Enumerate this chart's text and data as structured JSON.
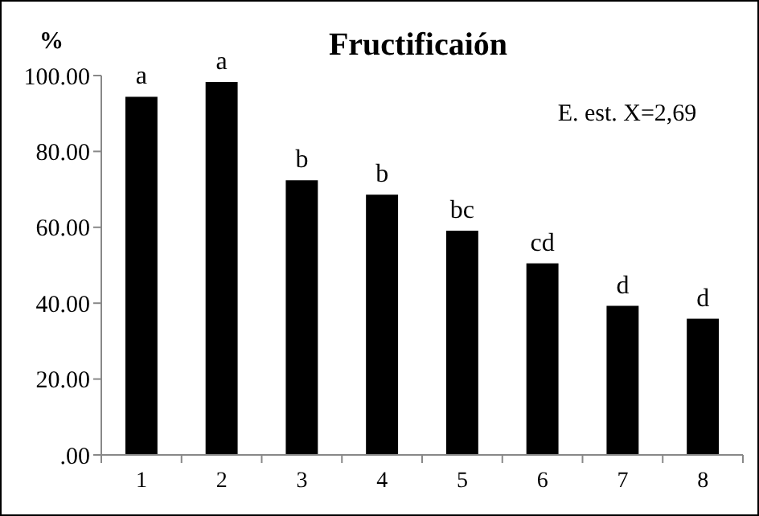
{
  "chart_data": {
    "type": "bar",
    "title": "Fructificaión",
    "ylabel": "%",
    "categories": [
      "1",
      "2",
      "3",
      "4",
      "5",
      "6",
      "7",
      "8"
    ],
    "values": [
      94.4,
      98.3,
      72.4,
      68.6,
      59.1,
      50.5,
      39.3,
      35.9
    ],
    "color": "#000000",
    "ylim": [
      0,
      100
    ],
    "yticks": [
      {
        "value": 0,
        "label": ".00"
      },
      {
        "value": 20,
        "label": "20.00"
      },
      {
        "value": 40,
        "label": "40.00"
      },
      {
        "value": 60,
        "label": "60.00"
      },
      {
        "value": 80,
        "label": "80.00"
      },
      {
        "value": 100,
        "label": "100.00"
      }
    ],
    "grid": false,
    "annotations": [
      "E. est. X=2,69",
      {
        "text": "a",
        "x": "1",
        "y": 94.4
      },
      {
        "text": "a",
        "x": "2",
        "y": 98.3
      },
      {
        "text": "b",
        "x": "3",
        "y": 72.4
      },
      {
        "text": "b",
        "x": "4",
        "y": 68.6
      },
      {
        "text": "bc",
        "x": "5",
        "y": 59.1
      },
      {
        "text": "cd",
        "x": "6",
        "y": 50.5
      },
      {
        "text": "d",
        "x": "7",
        "y": 39.3
      },
      {
        "text": "d",
        "x": "8",
        "y": 35.9
      }
    ]
  }
}
